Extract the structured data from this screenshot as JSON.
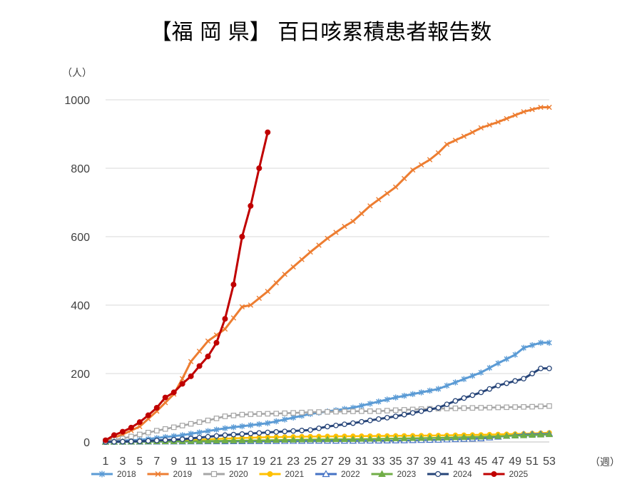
{
  "chart_data": {
    "type": "line",
    "title": "【福 岡 県】 百日咳累積患者報告数",
    "ylabel": "（人）",
    "xlabel": "（週）",
    "ylim": [
      0,
      1000
    ],
    "yticks": [
      0,
      200,
      400,
      600,
      800,
      1000
    ],
    "xlim": [
      1,
      53
    ],
    "xticks": [
      1,
      3,
      5,
      7,
      9,
      11,
      13,
      15,
      17,
      19,
      21,
      23,
      25,
      27,
      29,
      31,
      33,
      35,
      37,
      39,
      41,
      43,
      45,
      47,
      49,
      51,
      53
    ],
    "grid": "horizontal",
    "legend_position": "bottom",
    "series": [
      {
        "name": "2018",
        "color": "#5b9bd5",
        "marker": "star",
        "x": [
          1,
          5,
          10,
          15,
          20,
          25,
          30,
          35,
          40,
          45,
          47,
          49,
          50,
          51,
          52,
          53
        ],
        "values": [
          2,
          6,
          20,
          40,
          55,
          82,
          100,
          130,
          155,
          203,
          230,
          255,
          275,
          283,
          290,
          290
        ]
      },
      {
        "name": "2019",
        "color": "#ed7d31",
        "marker": "x",
        "x": [
          1,
          3,
          5,
          7,
          9,
          10,
          11,
          13,
          15,
          17,
          18,
          20,
          22,
          25,
          27,
          29,
          30,
          32,
          35,
          37,
          39,
          40,
          41,
          44,
          45,
          47,
          50,
          52,
          53
        ],
        "values": [
          3,
          22,
          45,
          90,
          140,
          185,
          235,
          295,
          330,
          395,
          400,
          440,
          490,
          555,
          595,
          630,
          645,
          690,
          745,
          795,
          825,
          845,
          870,
          905,
          918,
          935,
          965,
          978,
          978
        ]
      },
      {
        "name": "2020",
        "color": "#a5a5a5",
        "marker": "open-square",
        "x": [
          1,
          3,
          5,
          7,
          9,
          11,
          13,
          15,
          17,
          19,
          21,
          23,
          25,
          27,
          29,
          31,
          33,
          35,
          37,
          39,
          41,
          43,
          45,
          47,
          49,
          51,
          53
        ],
        "values": [
          3,
          10,
          22,
          33,
          43,
          53,
          63,
          75,
          80,
          82,
          83,
          85,
          87,
          88,
          89,
          90,
          90,
          93,
          95,
          97,
          98,
          99,
          100,
          101,
          102,
          103,
          105
        ]
      },
      {
        "name": "2021",
        "color": "#ffc000",
        "marker": "dot",
        "x": [
          1,
          5,
          10,
          15,
          20,
          25,
          30,
          35,
          40,
          45,
          50,
          53
        ],
        "values": [
          0,
          2,
          5,
          10,
          14,
          16,
          17,
          18,
          19,
          21,
          24,
          27
        ]
      },
      {
        "name": "2022",
        "color": "#4472c4",
        "marker": "open-triangle",
        "x": [
          1,
          10,
          20,
          25,
          30,
          35,
          40,
          45,
          47,
          50,
          53
        ],
        "values": [
          0,
          1,
          2,
          3,
          3,
          4,
          6,
          10,
          15,
          22,
          24
        ]
      },
      {
        "name": "2023",
        "color": "#70ad47",
        "marker": "triangle",
        "x": [
          1,
          10,
          20,
          25,
          30,
          35,
          40,
          45,
          50,
          53
        ],
        "values": [
          0,
          2,
          5,
          7,
          8,
          10,
          12,
          15,
          19,
          22
        ]
      },
      {
        "name": "2024",
        "color": "#264478",
        "marker": "open-circle",
        "x": [
          1,
          5,
          10,
          15,
          20,
          25,
          27,
          30,
          35,
          40,
          42,
          45,
          47,
          50,
          52,
          53
        ],
        "values": [
          0,
          2,
          8,
          20,
          28,
          35,
          45,
          55,
          75,
          100,
          120,
          145,
          165,
          185,
          215,
          215
        ]
      },
      {
        "name": "2025",
        "color": "#c00000",
        "marker": "filled-circle",
        "x": [
          1,
          2,
          3,
          4,
          5,
          6,
          7,
          8,
          9,
          10,
          11,
          12,
          13,
          14,
          15,
          16,
          17,
          18,
          19,
          20
        ],
        "values": [
          5,
          20,
          30,
          42,
          58,
          78,
          100,
          130,
          145,
          170,
          192,
          222,
          250,
          290,
          360,
          460,
          600,
          690,
          800,
          905
        ]
      }
    ]
  }
}
